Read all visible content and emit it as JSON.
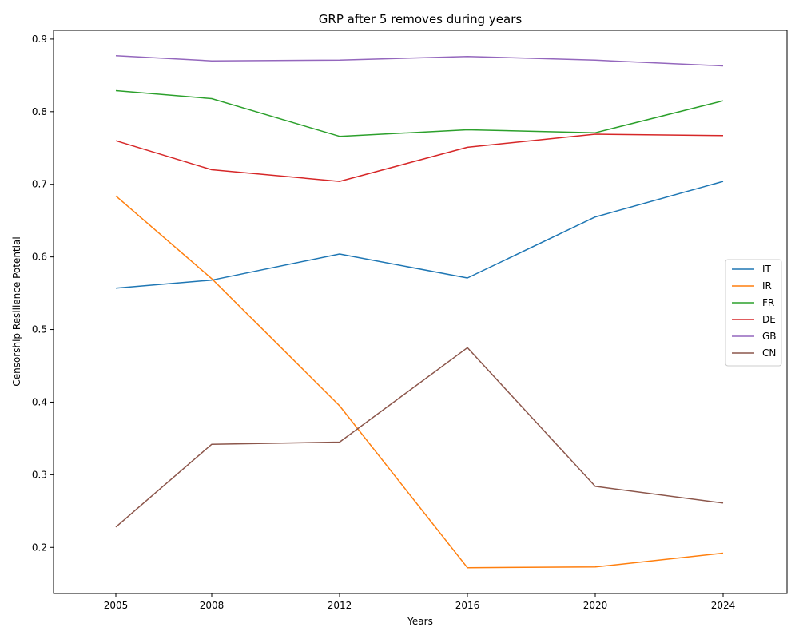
{
  "chart_data": {
    "type": "line",
    "title": "GRP after 5 removes during years",
    "xlabel": "Years",
    "ylabel": "Censorship Resilience Potential",
    "x": [
      2005,
      2008,
      2012,
      2016,
      2020,
      2024
    ],
    "xticks": [
      "2005",
      "2008",
      "2012",
      "2016",
      "2020",
      "2024"
    ],
    "yticks": [
      "0.2",
      "0.3",
      "0.4",
      "0.5",
      "0.6",
      "0.7",
      "0.8",
      "0.9"
    ],
    "xlim": [
      2003.05,
      2026.0
    ],
    "ylim": [
      0.1365,
      0.912
    ],
    "grid": false,
    "legend_position": "center-right",
    "series": [
      {
        "name": "IT",
        "color": "#1f77b4",
        "values": [
          0.557,
          0.568,
          0.604,
          0.571,
          0.655,
          0.704
        ]
      },
      {
        "name": "IR",
        "color": "#ff7f0e",
        "values": [
          0.684,
          0.57,
          0.395,
          0.172,
          0.173,
          0.192
        ]
      },
      {
        "name": "FR",
        "color": "#2ca02c",
        "values": [
          0.829,
          0.818,
          0.766,
          0.775,
          0.771,
          0.815
        ]
      },
      {
        "name": "DE",
        "color": "#d62728",
        "values": [
          0.76,
          0.72,
          0.704,
          0.751,
          0.769,
          0.767
        ]
      },
      {
        "name": "GB",
        "color": "#9467bd",
        "values": [
          0.877,
          0.87,
          0.871,
          0.876,
          0.871,
          0.863
        ]
      },
      {
        "name": "CN",
        "color": "#8c564b",
        "values": [
          0.228,
          0.342,
          0.345,
          0.475,
          0.284,
          0.261
        ]
      }
    ]
  }
}
